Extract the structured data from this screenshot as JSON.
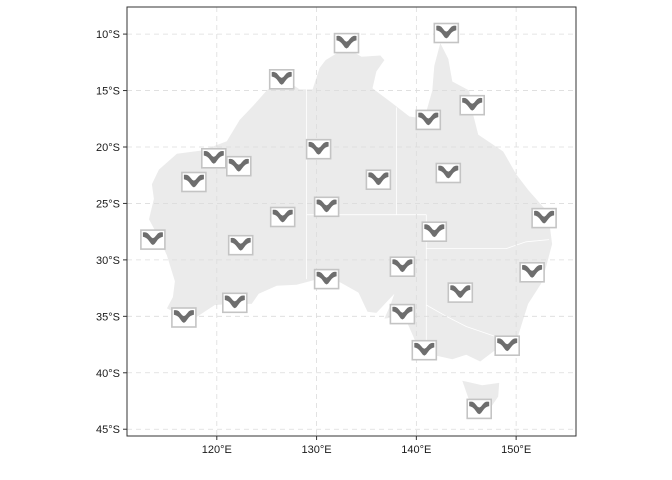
{
  "chart_data": {
    "type": "map",
    "xlim": [
      111,
      156
    ],
    "ylim": [
      -45.6,
      -7.6
    ],
    "grid": true,
    "x_ticks": [
      {
        "value": 120,
        "label": "120°E"
      },
      {
        "value": 130,
        "label": "130°E"
      },
      {
        "value": 140,
        "label": "140°E"
      },
      {
        "value": 150,
        "label": "150°E"
      }
    ],
    "y_ticks": [
      {
        "value": -10,
        "label": "10°S"
      },
      {
        "value": -15,
        "label": "15°S"
      },
      {
        "value": -20,
        "label": "20°S"
      },
      {
        "value": -25,
        "label": "25°S"
      },
      {
        "value": -30,
        "label": "30°S"
      },
      {
        "value": -35,
        "label": "35°S"
      },
      {
        "value": -40,
        "label": "40°S"
      },
      {
        "value": -45,
        "label": "45°S"
      }
    ],
    "glyph_shape": "band with minimum near middle of x range (seasonal curve)",
    "sites": [
      {
        "lon": 133.0,
        "lat": -10.8
      },
      {
        "lon": 143.0,
        "lat": -9.9
      },
      {
        "lon": 126.5,
        "lat": -14.0
      },
      {
        "lon": 145.6,
        "lat": -16.3
      },
      {
        "lon": 141.2,
        "lat": -17.6
      },
      {
        "lon": 130.2,
        "lat": -20.2
      },
      {
        "lon": 119.7,
        "lat": -21.0
      },
      {
        "lon": 122.2,
        "lat": -21.7
      },
      {
        "lon": 117.7,
        "lat": -23.1
      },
      {
        "lon": 136.2,
        "lat": -22.9
      },
      {
        "lon": 143.2,
        "lat": -22.3
      },
      {
        "lon": 131.0,
        "lat": -25.3
      },
      {
        "lon": 126.6,
        "lat": -26.2
      },
      {
        "lon": 152.8,
        "lat": -26.3
      },
      {
        "lon": 141.8,
        "lat": -27.5
      },
      {
        "lon": 113.6,
        "lat": -28.2
      },
      {
        "lon": 122.4,
        "lat": -28.7
      },
      {
        "lon": 138.6,
        "lat": -30.6
      },
      {
        "lon": 151.6,
        "lat": -31.1
      },
      {
        "lon": 131.0,
        "lat": -31.7
      },
      {
        "lon": 144.4,
        "lat": -32.9
      },
      {
        "lon": 121.8,
        "lat": -33.8
      },
      {
        "lon": 138.6,
        "lat": -34.8
      },
      {
        "lon": 116.7,
        "lat": -35.1
      },
      {
        "lon": 149.1,
        "lat": -37.6
      },
      {
        "lon": 140.8,
        "lat": -38.0
      },
      {
        "lon": 146.3,
        "lat": -43.2
      }
    ]
  },
  "colors": {
    "land": "#ebebeb",
    "state_border": "#ffffff",
    "glyph_fill": "#6e6e6e",
    "glyph_box": "#c4c4c4",
    "grid": "#dcdcdc",
    "panel_border": "#333333"
  }
}
